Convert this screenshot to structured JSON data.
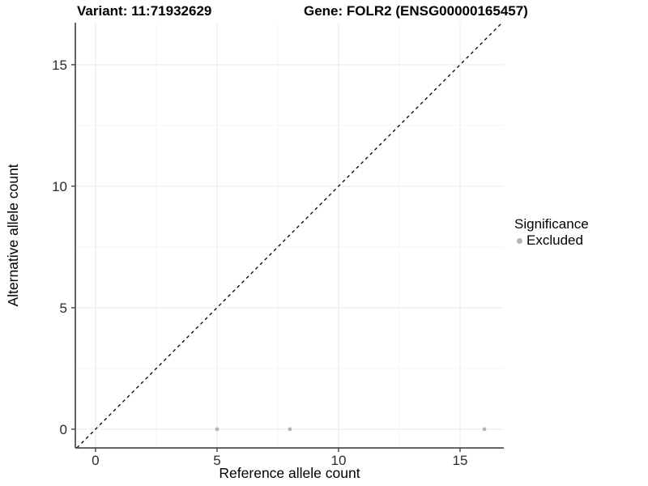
{
  "header": {
    "variant_title": "Variant: 11:71932629",
    "gene_title": "Gene: FOLR2 (ENSG00000165457)"
  },
  "legend": {
    "title": "Significance",
    "items": [
      {
        "label": "Excluded",
        "color": "#b4b4b4"
      }
    ]
  },
  "chart_data": {
    "type": "scatter",
    "title": "",
    "xlabel": "Reference allele count",
    "ylabel": "Alternative allele count",
    "xlim": [
      -0.83,
      16.8
    ],
    "ylim": [
      -0.77,
      16.73
    ],
    "xticks": [
      0,
      5,
      10,
      15
    ],
    "yticks": [
      0,
      5,
      10,
      15
    ],
    "xticks_minor": [
      2.5,
      7.5,
      12.5
    ],
    "yticks_minor": [
      2.5,
      7.5,
      12.5
    ],
    "grid": "major+minor",
    "legend_position": "right",
    "series": [
      {
        "name": "Excluded",
        "color": "#b4b4b4",
        "points": [
          [
            5,
            0
          ],
          [
            8,
            0
          ],
          [
            16,
            0
          ]
        ]
      }
    ],
    "reference_line": {
      "style": "dashed",
      "color": "#000000",
      "from": [
        -0.77,
        -0.77
      ],
      "to": [
        16.73,
        16.73
      ]
    }
  },
  "colors": {
    "background": "#ffffff",
    "grid_major": "#e9e9e9",
    "grid_minor": "#f5f5f5",
    "axis_line": "#333333",
    "tick_label": "#2b2b2b",
    "axis_title": "#000000"
  }
}
